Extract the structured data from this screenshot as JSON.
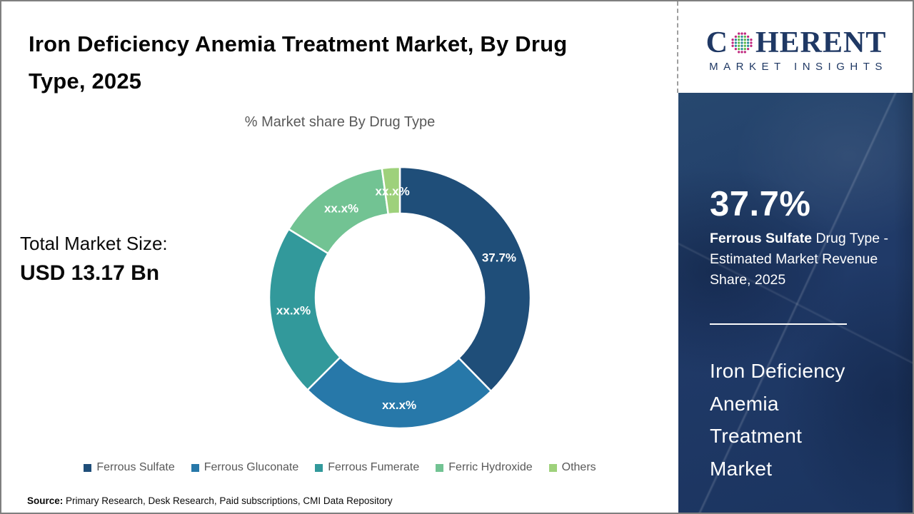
{
  "header": {
    "title": "Iron Deficiency Anemia Treatment Market, By Drug Type, 2025"
  },
  "main": {
    "total_market_size_label": "Total Market Size:",
    "total_market_size_value": "USD 13.17 Bn"
  },
  "chart_data": {
    "type": "pie",
    "donut": true,
    "title": "% Market share By Drug Type",
    "categories": [
      "Ferrous Sulfate",
      "Ferrous Gluconate",
      "Ferrous Fumerate",
      "Ferric Hydroxide",
      "Others"
    ],
    "values": [
      37.7,
      24.8,
      21.3,
      14.0,
      2.2
    ],
    "displayed_labels": [
      "37.7%",
      "xx.x%",
      "xx.x%",
      "xx.x%",
      "xx.x%"
    ],
    "colors": [
      "#1f4e79",
      "#2778a9",
      "#32999b",
      "#72c393",
      "#9ed17b"
    ],
    "start_angle_deg": 0,
    "legend_position": "bottom"
  },
  "source": {
    "prefix": "Source:",
    "text": " Primary Research, Desk Research, Paid subscriptions, CMI Data Repository"
  },
  "logo": {
    "brand_c": "C",
    "brand_rest": "HERENT",
    "tagline": "MARKET INSIGHTS",
    "brand_color": "#1f3864",
    "globe_dot_colors": {
      "edge": "#c0267e",
      "inner_a": "#2c8c99",
      "inner_b": "#5cb847"
    }
  },
  "sidebar": {
    "highlight_value": "37.7%",
    "highlight_bold": "Ferrous Sulfate",
    "highlight_rest": " Drug Type - Estimated Market Revenue Share, 2025",
    "market_name": "Iron Deficiency\nAnemia\nTreatment\nMarket",
    "panel_color": "#203a68"
  }
}
